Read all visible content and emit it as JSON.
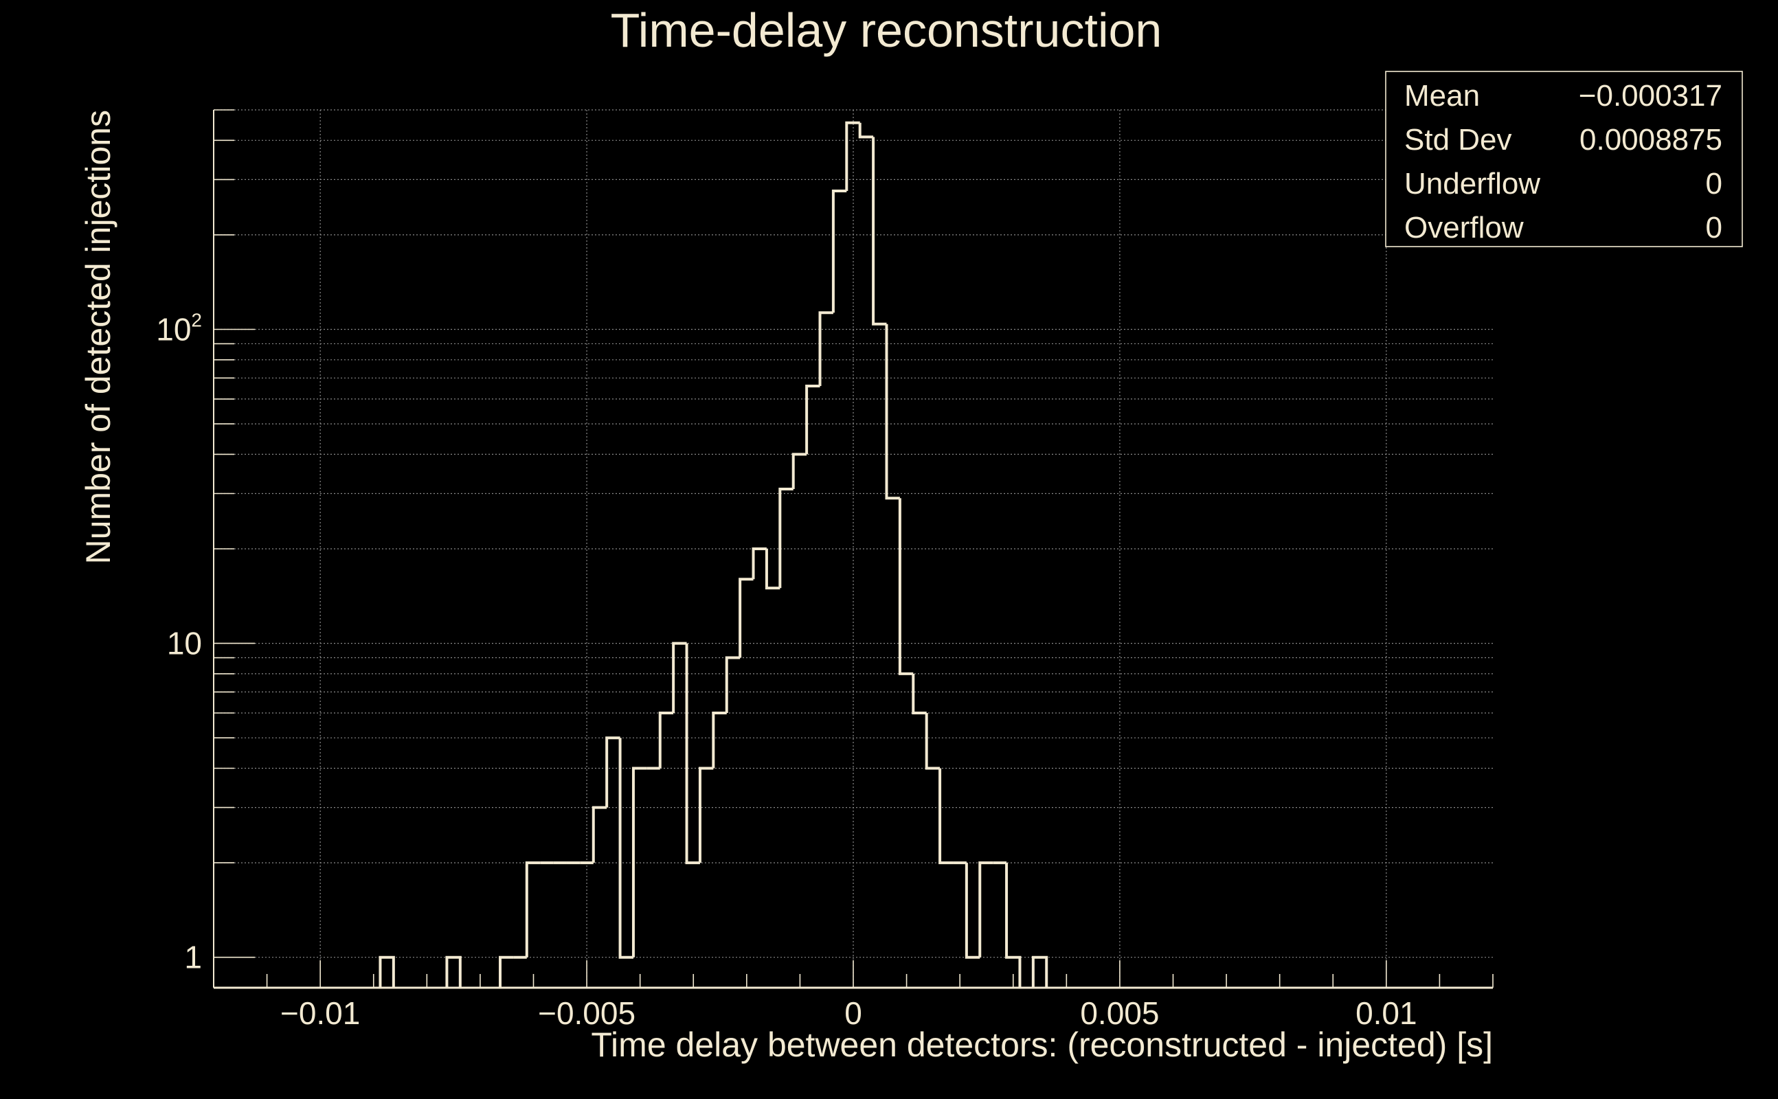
{
  "colors": {
    "background": "#000000",
    "foreground": "#f3ead2",
    "grid": "#8a8a8a"
  },
  "chart_data": {
    "type": "histogram",
    "title": "Time-delay reconstruction",
    "xlabel": "Time delay between detectors: (reconstructed - injected) [s]",
    "ylabel": "Number of detected injections",
    "xlim": [
      -0.012,
      0.012
    ],
    "ylim": [
      0.8,
      500
    ],
    "yscale": "log",
    "grid": true,
    "x_ticks": [
      {
        "value": -0.01,
        "label": "−0.01"
      },
      {
        "value": -0.005,
        "label": "−0.005"
      },
      {
        "value": 0,
        "label": "0"
      },
      {
        "value": 0.005,
        "label": "0.005"
      },
      {
        "value": 0.01,
        "label": "0.01"
      }
    ],
    "y_ticks": [
      {
        "value": 1,
        "base": "1",
        "exp": ""
      },
      {
        "value": 10,
        "base": "10",
        "exp": ""
      },
      {
        "value": 100,
        "base": "10",
        "exp": "2"
      }
    ],
    "bin_width": 0.00025,
    "bins": [
      {
        "x": -0.00875,
        "count": 1
      },
      {
        "x": -0.0075,
        "count": 1
      },
      {
        "x": -0.0065,
        "count": 1
      },
      {
        "x": -0.00625,
        "count": 1
      },
      {
        "x": -0.006,
        "count": 2
      },
      {
        "x": -0.00575,
        "count": 2
      },
      {
        "x": -0.0055,
        "count": 2
      },
      {
        "x": -0.00525,
        "count": 2
      },
      {
        "x": -0.005,
        "count": 2
      },
      {
        "x": -0.00475,
        "count": 3
      },
      {
        "x": -0.0045,
        "count": 5
      },
      {
        "x": -0.00425,
        "count": 1
      },
      {
        "x": -0.004,
        "count": 4
      },
      {
        "x": -0.00375,
        "count": 4
      },
      {
        "x": -0.0035,
        "count": 6
      },
      {
        "x": -0.00325,
        "count": 10
      },
      {
        "x": -0.003,
        "count": 2
      },
      {
        "x": -0.00275,
        "count": 4
      },
      {
        "x": -0.0025,
        "count": 6
      },
      {
        "x": -0.00225,
        "count": 9
      },
      {
        "x": -0.002,
        "count": 16
      },
      {
        "x": -0.00175,
        "count": 20
      },
      {
        "x": -0.0015,
        "count": 15
      },
      {
        "x": -0.00125,
        "count": 31
      },
      {
        "x": -0.001,
        "count": 40
      },
      {
        "x": -0.00075,
        "count": 66
      },
      {
        "x": -0.0005,
        "count": 113
      },
      {
        "x": -0.00025,
        "count": 276
      },
      {
        "x": 0,
        "count": 455
      },
      {
        "x": 0.00025,
        "count": 410
      },
      {
        "x": 0.0005,
        "count": 104
      },
      {
        "x": 0.00075,
        "count": 29
      },
      {
        "x": 0.001,
        "count": 8
      },
      {
        "x": 0.00125,
        "count": 6
      },
      {
        "x": 0.0015,
        "count": 4
      },
      {
        "x": 0.00175,
        "count": 2
      },
      {
        "x": 0.002,
        "count": 2
      },
      {
        "x": 0.00225,
        "count": 1
      },
      {
        "x": 0.0025,
        "count": 2
      },
      {
        "x": 0.00275,
        "count": 2
      },
      {
        "x": 0.003,
        "count": 1
      },
      {
        "x": 0.0035,
        "count": 1
      }
    ],
    "stats": [
      {
        "label": "Mean",
        "value": "−0.000317"
      },
      {
        "label": "Std Dev",
        "value": "0.0008875"
      },
      {
        "label": "Underflow",
        "value": "0"
      },
      {
        "label": "Overflow",
        "value": "0"
      }
    ]
  }
}
